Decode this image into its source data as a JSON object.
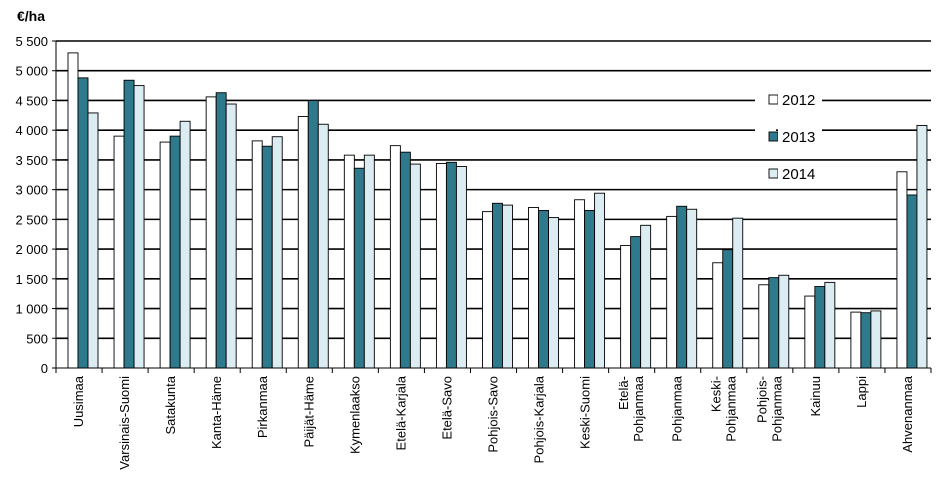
{
  "chart_data": {
    "type": "bar",
    "ylabel": "€/ha",
    "ylim": [
      0,
      5500
    ],
    "ytick_step": 500,
    "ytick_labels": [
      "0",
      "500",
      "1 000",
      "1 500",
      "2 000",
      "2 500",
      "3 000",
      "3 500",
      "4 000",
      "4 500",
      "5 000",
      "5 500"
    ],
    "grid": true,
    "legend_position": "right",
    "categories": [
      [
        "Uusimaa"
      ],
      [
        "Varsinais-Suomi"
      ],
      [
        "Satakunta"
      ],
      [
        "Kanta-Häme"
      ],
      [
        "Pirkanmaa"
      ],
      [
        "Päijät-Häme"
      ],
      [
        "Kymenlaakso"
      ],
      [
        "Etelä-Karjala"
      ],
      [
        "Etelä-Savo"
      ],
      [
        "Pohjois-Savo"
      ],
      [
        "Pohjois-Karjala"
      ],
      [
        "Keski-Suomi"
      ],
      [
        "Etelä-",
        "Pohjanmaa"
      ],
      [
        "Pohjanmaa"
      ],
      [
        "Keski-",
        "Pohjanmaa"
      ],
      [
        "Pohjois-",
        "Pohjanmaa"
      ],
      [
        "Kainuu"
      ],
      [
        "Lappi"
      ],
      [
        "Ahvenanmaa"
      ]
    ],
    "series": [
      {
        "name": "2012",
        "color": "#ffffff",
        "values": [
          5300,
          3900,
          3800,
          4560,
          3820,
          4230,
          3580,
          3740,
          3440,
          2630,
          2700,
          2830,
          2060,
          2550,
          1770,
          1400,
          1210,
          940,
          3300
        ]
      },
      {
        "name": "2013",
        "color": "#2e7a8c",
        "values": [
          4880,
          4840,
          3900,
          4630,
          3730,
          4500,
          3360,
          3630,
          3460,
          2770,
          2650,
          2650,
          2210,
          2720,
          1990,
          1520,
          1370,
          930,
          2910
        ]
      },
      {
        "name": "2014",
        "color": "#dbecf2",
        "values": [
          4290,
          4750,
          4150,
          4440,
          3890,
          4100,
          3580,
          3430,
          3390,
          2740,
          2530,
          2940,
          2400,
          2670,
          2520,
          1560,
          1440,
          960,
          4080
        ]
      }
    ]
  }
}
